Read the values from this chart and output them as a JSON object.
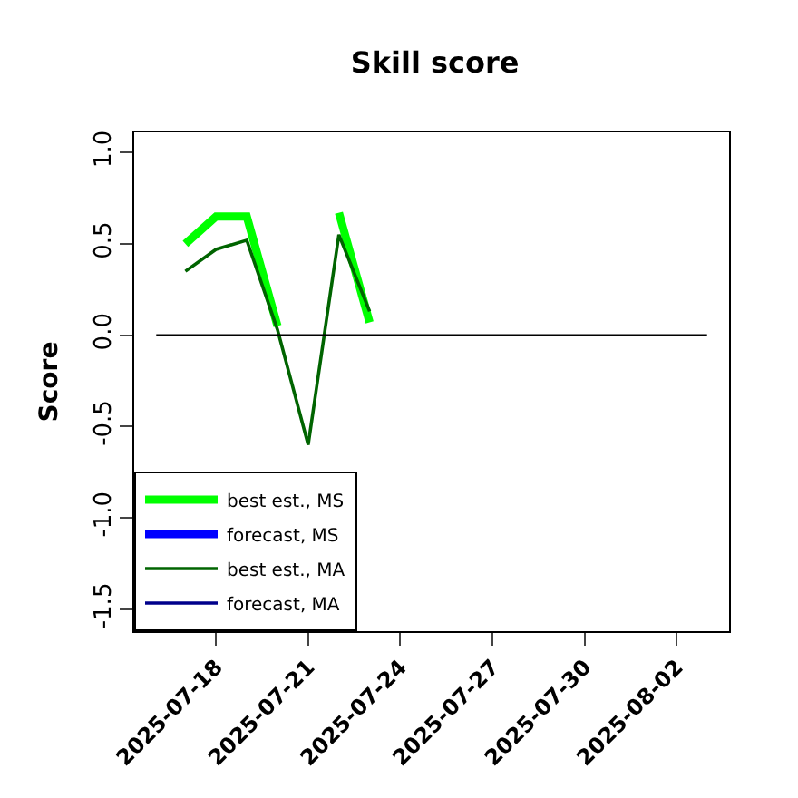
{
  "chart_data": {
    "type": "line",
    "title": "Skill score",
    "ylabel": "Score",
    "x": [
      "2025-07-17",
      "2025-07-18",
      "2025-07-19",
      "2025-07-20",
      "2025-07-21",
      "2025-07-22",
      "2025-07-23"
    ],
    "series": [
      {
        "name": "best est., MS",
        "color": "#00ff00",
        "values": [
          0.5,
          0.65,
          0.65,
          0.05,
          null,
          0.67,
          0.07
        ]
      },
      {
        "name": "forecast, MS",
        "color": "#0000ff",
        "values": [
          null,
          null,
          null,
          null,
          null,
          null,
          null
        ]
      },
      {
        "name": "best est., MA",
        "color": "#006400",
        "values": [
          0.35,
          0.47,
          0.52,
          0.03,
          -0.6,
          0.55,
          0.13
        ]
      },
      {
        "name": "forecast, MA",
        "color": "#00008b",
        "values": [
          null,
          null,
          null,
          null,
          null,
          null,
          null
        ]
      }
    ],
    "xlim": [
      "2025-07-15T08:00",
      "2025-08-03T17:00"
    ],
    "xticks": [
      "2025-07-18",
      "2025-07-21",
      "2025-07-24",
      "2025-07-27",
      "2025-07-30",
      "2025-08-02"
    ],
    "ylim": [
      -1.62,
      1.11
    ],
    "yticks": [
      {
        "value": -1.5,
        "label": "-1.5"
      },
      {
        "value": -1,
        "label": "-1.0"
      },
      {
        "value": -0.5,
        "label": "-0.5"
      },
      {
        "value": 0,
        "label": "0.0"
      },
      {
        "value": 0.5,
        "label": "0.5"
      },
      {
        "value": 1,
        "label": "1.0"
      }
    ],
    "ref_lines": [
      {
        "axis": "y",
        "value": 0,
        "color": "#000000"
      }
    ],
    "grid": false,
    "legend": "bottom left",
    "marker": "none",
    "line_style": "solid"
  }
}
